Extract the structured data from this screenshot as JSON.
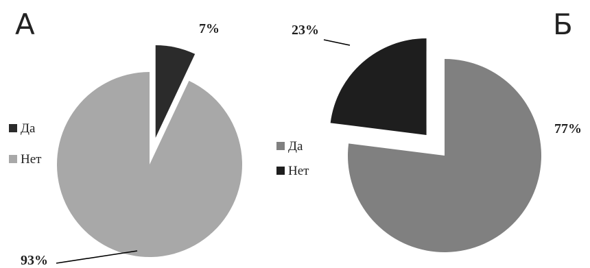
{
  "chart_data": [
    {
      "type": "pie",
      "panel_label": "А",
      "slices": [
        {
          "label": "Да",
          "value": 7,
          "label_text": "7%",
          "color": "#2b2b2b",
          "exploded": true
        },
        {
          "label": "Нет",
          "value": 93,
          "label_text": "93%",
          "color": "#a8a8a8",
          "exploded": false
        }
      ],
      "legend": {
        "position": "left",
        "entries": [
          "Да",
          "Нет"
        ]
      }
    },
    {
      "type": "pie",
      "panel_label": "Б",
      "slices": [
        {
          "label": "Нет",
          "value": 23,
          "label_text": "23%",
          "color": "#1e1e1e",
          "exploded": true
        },
        {
          "label": "Да",
          "value": 77,
          "label_text": "77%",
          "color": "#808080",
          "exploded": false
        }
      ],
      "legend": {
        "position": "left",
        "entries": [
          "Да",
          "Нет"
        ]
      }
    }
  ]
}
